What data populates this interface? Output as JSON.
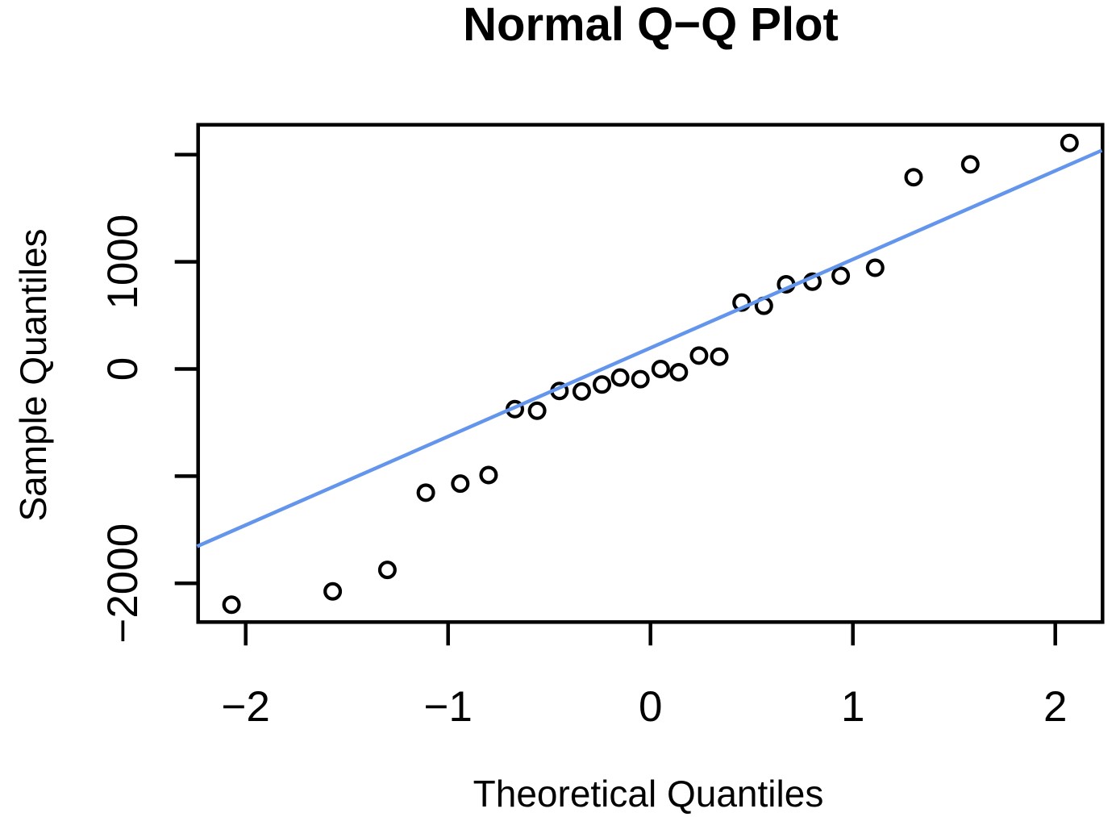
{
  "page": {
    "background": "#FFFFFF"
  },
  "chart_data": {
    "type": "scatter",
    "title": "Normal Q−Q Plot",
    "xlabel": "Theoretical Quantiles",
    "ylabel": "Sample Quantiles",
    "xlim": [
      -2.24,
      2.23
    ],
    "ylim": [
      -2370,
      2280
    ],
    "grid": false,
    "legend": null,
    "x_ticks": [
      {
        "value": -2,
        "label": "−2"
      },
      {
        "value": -1,
        "label": "−1"
      },
      {
        "value": 0,
        "label": "0"
      },
      {
        "value": 1,
        "label": "1"
      },
      {
        "value": 2,
        "label": "2"
      }
    ],
    "y_ticks": [
      {
        "value": 2000,
        "label": ""
      },
      {
        "value": 1000,
        "label": "1000"
      },
      {
        "value": 0,
        "label": "0"
      },
      {
        "value": -1000,
        "label": ""
      },
      {
        "value": -2000,
        "label": "−2000"
      }
    ],
    "points": [
      {
        "x": -2.07,
        "y": -2200
      },
      {
        "x": -1.57,
        "y": -2075
      },
      {
        "x": -1.3,
        "y": -1875
      },
      {
        "x": -1.11,
        "y": -1155
      },
      {
        "x": -0.94,
        "y": -1070
      },
      {
        "x": -0.8,
        "y": -990
      },
      {
        "x": -0.67,
        "y": -375
      },
      {
        "x": -0.56,
        "y": -390
      },
      {
        "x": -0.45,
        "y": -205
      },
      {
        "x": -0.34,
        "y": -210
      },
      {
        "x": -0.24,
        "y": -145
      },
      {
        "x": -0.15,
        "y": -80
      },
      {
        "x": -0.05,
        "y": -95
      },
      {
        "x": 0.05,
        "y": 0
      },
      {
        "x": 0.14,
        "y": -30
      },
      {
        "x": 0.24,
        "y": 125
      },
      {
        "x": 0.34,
        "y": 115
      },
      {
        "x": 0.45,
        "y": 620
      },
      {
        "x": 0.56,
        "y": 590
      },
      {
        "x": 0.67,
        "y": 790
      },
      {
        "x": 0.8,
        "y": 815
      },
      {
        "x": 0.94,
        "y": 870
      },
      {
        "x": 1.11,
        "y": 945
      },
      {
        "x": 1.3,
        "y": 1790
      },
      {
        "x": 1.58,
        "y": 1910
      },
      {
        "x": 2.07,
        "y": 2110
      }
    ],
    "qq_line": {
      "x1": -2.24,
      "y1": -1655,
      "x2": 2.23,
      "y2": 2040
    },
    "colors": {
      "qq_line": "#6495ED",
      "points": "#000000",
      "axis": "#000000",
      "text": "#000000",
      "background": "#FFFFFF"
    }
  }
}
